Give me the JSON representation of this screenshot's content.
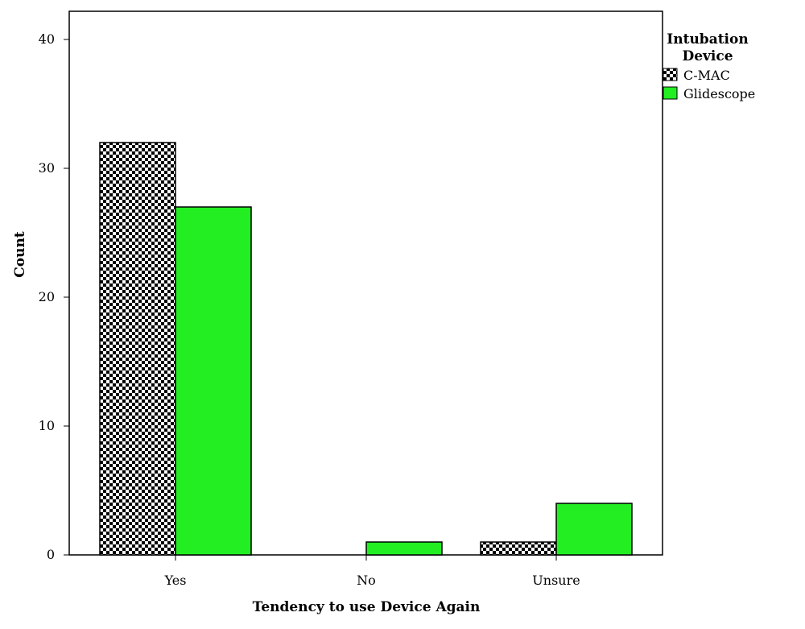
{
  "chart_data": {
    "type": "bar",
    "title": "",
    "xlabel": "Tendency to use Device Again",
    "ylabel": "Count",
    "categories": [
      "Yes",
      "No",
      "Unsure"
    ],
    "series": [
      {
        "name": "C-MAC",
        "values": [
          32,
          0,
          1
        ],
        "pattern": "checkerboard",
        "color": "#000000"
      },
      {
        "name": "Glidescope",
        "values": [
          27,
          1,
          4
        ],
        "color": "#22ee22"
      }
    ],
    "ylim": [
      0,
      42
    ],
    "yticks": [
      0,
      10,
      20,
      30,
      40
    ],
    "grid": false,
    "legend": {
      "title_line1": "Intubation",
      "title_line2": "Device",
      "position": "top-right"
    }
  }
}
